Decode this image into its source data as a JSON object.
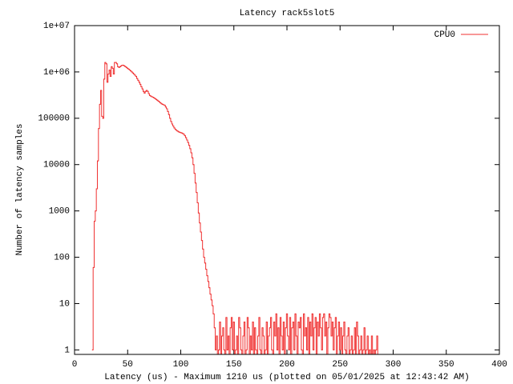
{
  "chart_data": {
    "type": "line",
    "title": "Latency rack5slot5",
    "x_label": "Latency (us) - Maximum 1210 us (plotted on 05/01/2025 at 12:43:42 AM)",
    "y_label": "Number of latency samples",
    "xlim": [
      0,
      400
    ],
    "xticks": [
      0,
      50,
      100,
      150,
      200,
      250,
      300,
      350,
      400
    ],
    "ylim": [
      0.8,
      10000000
    ],
    "yticks": [
      {
        "value": 10000000,
        "label": "1e+07"
      },
      {
        "value": 1000000,
        "label": "1e+06"
      },
      100000,
      10000,
      1000,
      100,
      10,
      1
    ],
    "ylog": true,
    "steps": true,
    "legend": "top right",
    "x": [
      17,
      18,
      19,
      20,
      21,
      22,
      23,
      24,
      25,
      26,
      27,
      28,
      29,
      30,
      31,
      32,
      33,
      34,
      35,
      36,
      37,
      38,
      39,
      40,
      41,
      42,
      43,
      44,
      45,
      46,
      47,
      48,
      49,
      50,
      51,
      52,
      53,
      54,
      55,
      56,
      57,
      58,
      59,
      60,
      61,
      62,
      63,
      64,
      65,
      66,
      67,
      68,
      69,
      70,
      71,
      72,
      73,
      74,
      75,
      76,
      77,
      78,
      79,
      80,
      81,
      82,
      83,
      84,
      85,
      86,
      87,
      88,
      89,
      90,
      91,
      92,
      93,
      94,
      95,
      96,
      97,
      98,
      99,
      100,
      101,
      102,
      103,
      104,
      105,
      106,
      107,
      108,
      109,
      110,
      111,
      112,
      113,
      114,
      115,
      116,
      117,
      118,
      119,
      120,
      121,
      122,
      123,
      124,
      125,
      126,
      127,
      128,
      129,
      130,
      131,
      132,
      133,
      134,
      135,
      136,
      137,
      138,
      139,
      140,
      141,
      142,
      143,
      144,
      145,
      146,
      147,
      148,
      149,
      150,
      151,
      152,
      153,
      154,
      155,
      156,
      157,
      158,
      159,
      160,
      161,
      162,
      163,
      164,
      165,
      166,
      167,
      168,
      169,
      170,
      171,
      172,
      173,
      174,
      175,
      176,
      177,
      178,
      179,
      180,
      181,
      182,
      183,
      184,
      185,
      186,
      187,
      188,
      189,
      190,
      191,
      192,
      193,
      194,
      195,
      196,
      197,
      198,
      199,
      200,
      201,
      202,
      203,
      204,
      205,
      206,
      207,
      208,
      209,
      210,
      211,
      212,
      213,
      214,
      215,
      216,
      217,
      218,
      219,
      220,
      221,
      222,
      223,
      224,
      225,
      226,
      227,
      228,
      229,
      230,
      231,
      232,
      233,
      234,
      235,
      236,
      237,
      238,
      239,
      240,
      241,
      242,
      243,
      244,
      245,
      246,
      247,
      248,
      249,
      250,
      251,
      252,
      253,
      254,
      255,
      256,
      257,
      258,
      259,
      260,
      261,
      262,
      263,
      264,
      265,
      266,
      267,
      268,
      269,
      270,
      271,
      272,
      273,
      274,
      275,
      276,
      277,
      278,
      279,
      280,
      281,
      282,
      283,
      284,
      285,
      286
    ],
    "series": [
      {
        "name": "CPU0",
        "color": "#f03232",
        "values": [
          1,
          60,
          600,
          1000,
          3000,
          12000,
          60000,
          200000,
          400000,
          110000,
          100000,
          700000,
          1600000,
          1500000,
          600000,
          900000,
          1100000,
          800000,
          1300000,
          1200000,
          900000,
          1600000,
          1600000,
          1500000,
          1300000,
          1250000,
          1300000,
          1350000,
          1400000,
          1400000,
          1350000,
          1300000,
          1250000,
          1200000,
          1150000,
          1100000,
          1050000,
          1000000,
          950000,
          900000,
          850000,
          800000,
          720000,
          660000,
          600000,
          540000,
          480000,
          430000,
          380000,
          350000,
          380000,
          400000,
          380000,
          340000,
          310000,
          300000,
          290000,
          285000,
          275000,
          265000,
          255000,
          245000,
          235000,
          225000,
          215000,
          205000,
          200000,
          195000,
          190000,
          175000,
          160000,
          140000,
          120000,
          100000,
          85000,
          75000,
          68000,
          62000,
          58000,
          55000,
          53000,
          51000,
          50000,
          49000,
          48000,
          47000,
          45000,
          42000,
          38000,
          34000,
          30000,
          26000,
          22000,
          18000,
          14000,
          10000,
          6500,
          4000,
          2500,
          1500,
          900,
          550,
          350,
          230,
          150,
          100,
          75,
          55,
          40,
          30,
          22,
          16,
          12,
          9,
          6,
          3,
          1,
          2,
          0,
          1,
          4,
          0,
          2,
          3,
          1,
          0,
          5,
          1,
          2,
          0,
          3,
          5,
          1,
          4,
          0,
          1,
          2,
          0,
          5,
          3,
          1,
          0,
          2,
          4,
          0,
          1,
          5,
          3,
          0,
          2,
          1,
          4,
          0,
          3,
          1,
          0,
          2,
          5,
          1,
          0,
          3,
          2,
          0,
          1,
          4,
          0,
          2,
          3,
          5,
          1,
          0,
          4,
          2,
          6,
          1,
          3,
          0,
          5,
          2,
          1,
          4,
          0,
          3,
          6,
          2,
          1,
          5,
          0,
          3,
          4,
          1,
          6,
          2,
          0,
          4,
          3,
          5,
          1,
          0,
          6,
          2,
          3,
          1,
          5,
          0,
          4,
          2,
          6,
          1,
          3,
          5,
          0,
          4,
          2,
          6,
          3,
          1,
          5,
          6,
          2,
          4,
          0,
          3,
          6,
          5,
          2,
          4,
          1,
          3,
          5,
          0,
          2,
          4,
          1,
          3,
          0,
          2,
          4,
          1,
          0,
          2,
          3,
          0,
          1,
          2,
          0,
          1,
          3,
          0,
          4,
          2,
          0,
          1,
          2,
          0,
          1,
          3,
          0,
          1,
          2,
          0,
          1,
          0,
          2,
          0,
          1,
          0,
          1,
          2,
          0
        ]
      }
    ]
  }
}
